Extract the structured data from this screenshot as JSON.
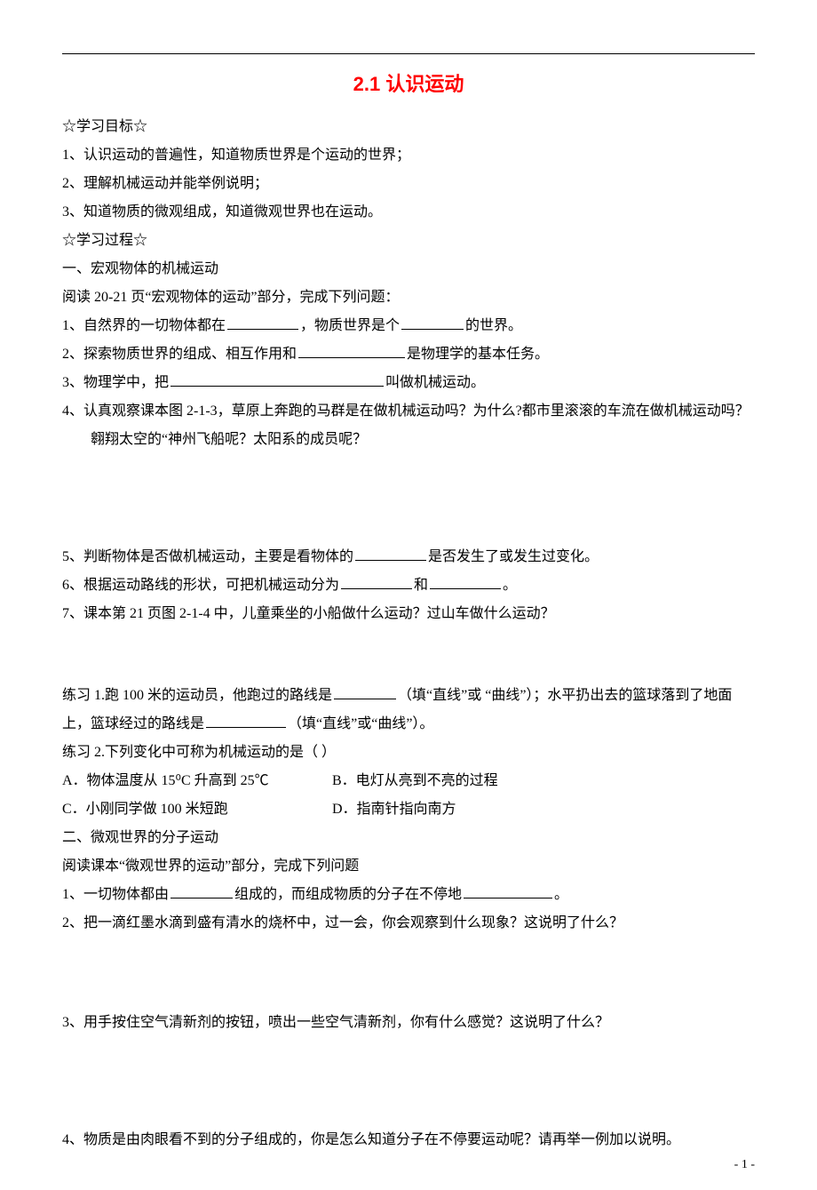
{
  "title": "2.1 认识运动",
  "header_goals": "☆学习目标☆",
  "goal1": "1、认识运动的普遍性，知道物质世界是个运动的世界；",
  "goal2": "2、理解机械运动并能举例说明；",
  "goal3": "3、知道物质的微观组成，知道微观世界也在运动。",
  "header_process": "☆学习过程☆",
  "sec1_title": "一、宏观物体的机械运动",
  "sec1_read": "阅读 20-21 页“宏观物体的运动”部分，完成下列问题：",
  "sec1_q1a": "1、自然界的一切物体都在",
  "sec1_q1b": "，物质世界是个",
  "sec1_q1c": "的世界。",
  "sec1_q2a": "2、探索物质世界的组成、相互作用和",
  "sec1_q2b": "是物理学的基本任务。",
  "sec1_q3a": "3、物理学中，把",
  "sec1_q3b": "叫做机械运动。",
  "sec1_q4": "4、认真观察课本图 2-1-3，草原上奔跑的马群是在做机械运动吗？为什么?都市里滚滚的车流在做机械运动吗？翱翔太空的“神州飞船呢？太阳系的成员呢？",
  "sec1_q5a": "5、判断物体是否做机械运动，主要是看物体的",
  "sec1_q5b": "是否发生了或发生过变化。",
  "sec1_q6a": "6、根据运动路线的形状，可把机械运动分为",
  "sec1_q6b": "和",
  "sec1_q6c": "。",
  "sec1_q7": "7、课本第 21 页图 2-1-4 中，儿童乘坐的小船做什么运动？过山车做什么运动？",
  "practice1a": "练习 1.跑 100 米的运动员，他跑过的路线是",
  "practice1b": "（填“直线”或 “曲线”）；水平扔出去的篮球落到了地面上，篮球经过的路线是",
  "practice1c": "（填“直线”或“曲线”）。",
  "practice2": "练习 2.下列变化中可称为机械运动的是（    ）",
  "optA": "A．物体温度从 15⁰C 升高到 25℃",
  "optB": "B．电灯从亮到不亮的过程",
  "optC": "C．小刚同学做 100 米短跑",
  "optD": "D．指南针指向南方",
  "sec2_title": "二、微观世界的分子运动",
  "sec2_read": "阅读课本“微观世界的运动”部分，完成下列问题",
  "sec2_q1a": "1、一切物体都由",
  "sec2_q1b": "组成的，而组成物质的分子在不停地",
  "sec2_q1c": "。",
  "sec2_q2": "2、把一滴红墨水滴到盛有清水的烧杯中，过一会，你会观察到什么现象？这说明了什么？",
  "sec2_q3": "3、用手按住空气清新剂的按钮，喷出一些空气清新剂，你有什么感觉？这说明了什么？",
  "sec2_q4": "4、物质是由肉眼看不到的分子组成的，你是怎么知道分子在不停要运动呢？请再举一例加以说明。",
  "page_num": "- 1 -",
  "blanks": {
    "w80": 80,
    "w70": 70,
    "w120": 120,
    "w240": 240,
    "w90": 90,
    "w100": 100
  }
}
